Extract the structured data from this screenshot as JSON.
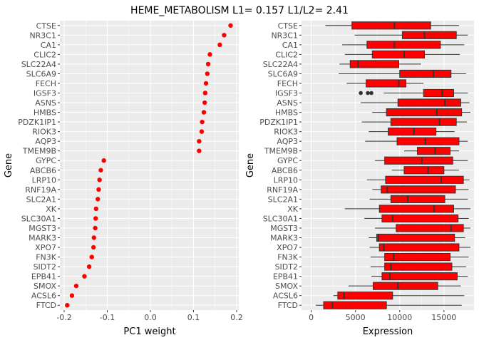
{
  "title": "HEME_METABOLISM L1= 0.157 L1/L2= 2.41",
  "colors": {
    "panel_bg": "#ebebeb",
    "grid": "#ffffff",
    "point": "#ff0000",
    "box_fill": "#ff0000",
    "box_line": "#333333",
    "outlier": "#333333"
  },
  "chart_data": [
    {
      "type": "scatter",
      "xlabel": "PC1 weight",
      "ylabel": "Gene",
      "xlim": [
        -0.21,
        0.205
      ],
      "xticks": [
        -0.2,
        -0.1,
        0.0,
        0.1,
        0.2
      ],
      "xtick_labels": [
        "-0.2",
        "-0.1",
        "0.0",
        "0.1",
        "0.2"
      ],
      "grid": true,
      "genes": [
        "CTSE",
        "NR3C1",
        "CA1",
        "CLIC2",
        "SLC22A4",
        "SLC6A9",
        "FECH",
        "IGSF3",
        "ASNS",
        "HMBS",
        "PDZK1IP1",
        "RIOK3",
        "AQP3",
        "TMEM9B",
        "GYPC",
        "ABCB6",
        "LRP10",
        "RNF19A",
        "SLC2A1",
        "XK",
        "SLC30A1",
        "MGST3",
        "MARK3",
        "XPO7",
        "FN3K",
        "SIDT2",
        "EPB41",
        "SMOX",
        "ACSL6",
        "FTCD"
      ],
      "values": [
        0.186,
        0.171,
        0.161,
        0.138,
        0.134,
        0.132,
        0.129,
        0.127,
        0.126,
        0.124,
        0.12,
        0.119,
        0.113,
        0.113,
        -0.108,
        -0.115,
        -0.118,
        -0.12,
        -0.122,
        -0.126,
        -0.127,
        -0.128,
        -0.131,
        -0.132,
        -0.136,
        -0.142,
        -0.153,
        -0.172,
        -0.182,
        -0.193
      ]
    },
    {
      "type": "boxplot",
      "xlabel": "Expression",
      "ylabel": "Gene",
      "xlim": [
        -1100,
        18400
      ],
      "xticks": [
        0,
        5000,
        10000,
        15000
      ],
      "xtick_labels": [
        "0",
        "5000",
        "10000",
        "15000"
      ],
      "grid": true,
      "genes": [
        "CTSE",
        "NR3C1",
        "CA1",
        "CLIC2",
        "SLC22A4",
        "SLC6A9",
        "FECH",
        "IGSF3",
        "ASNS",
        "HMBS",
        "PDZK1IP1",
        "RIOK3",
        "AQP3",
        "TMEM9B",
        "GYPC",
        "ABCB6",
        "LRP10",
        "RNF19A",
        "SLC2A1",
        "XK",
        "SLC30A1",
        "MGST3",
        "MARK3",
        "XPO7",
        "FN3K",
        "SIDT2",
        "EPB41",
        "SMOX",
        "ACSL6",
        "FTCD"
      ],
      "boxes": [
        {
          "min": 1600,
          "q1": 4600,
          "median": 9400,
          "q3": 13500,
          "max": 16700,
          "outliers": []
        },
        {
          "min": 4900,
          "q1": 10300,
          "median": 12800,
          "q3": 16400,
          "max": 17700,
          "outliers": []
        },
        {
          "min": 3500,
          "q1": 6300,
          "median": 9400,
          "q3": 14600,
          "max": 17300,
          "outliers": []
        },
        {
          "min": 3800,
          "q1": 6900,
          "median": 10500,
          "q3": 12800,
          "max": 16800,
          "outliers": []
        },
        {
          "min": 3200,
          "q1": 4400,
          "median": 5300,
          "q3": 9900,
          "max": 12400,
          "outliers": []
        },
        {
          "min": 3100,
          "q1": 10000,
          "median": 13800,
          "q3": 15800,
          "max": 17500,
          "outliers": []
        },
        {
          "min": 4000,
          "q1": 6200,
          "median": 9900,
          "q3": 10700,
          "max": 12700,
          "outliers": []
        },
        {
          "min": 8200,
          "q1": 12700,
          "median": 14800,
          "q3": 16100,
          "max": 17700,
          "outliers": [
            5600,
            6400,
            6800
          ]
        },
        {
          "min": 5600,
          "q1": 9800,
          "median": 15100,
          "q3": 16900,
          "max": 17900,
          "outliers": []
        },
        {
          "min": 6900,
          "q1": 8500,
          "median": 14200,
          "q3": 17000,
          "max": 18000,
          "outliers": []
        },
        {
          "min": 5700,
          "q1": 9000,
          "median": 14500,
          "q3": 16400,
          "max": 17600,
          "outliers": []
        },
        {
          "min": 6500,
          "q1": 8700,
          "median": 11600,
          "q3": 14100,
          "max": 16200,
          "outliers": []
        },
        {
          "min": 6100,
          "q1": 9700,
          "median": 12900,
          "q3": 16700,
          "max": 17700,
          "outliers": []
        },
        {
          "min": 10500,
          "q1": 12000,
          "median": 14000,
          "q3": 15700,
          "max": 16700,
          "outliers": []
        },
        {
          "min": 7200,
          "q1": 8300,
          "median": 12500,
          "q3": 16000,
          "max": 17700,
          "outliers": []
        },
        {
          "min": 9100,
          "q1": 10500,
          "median": 13200,
          "q3": 15000,
          "max": 16700,
          "outliers": []
        },
        {
          "min": 6300,
          "q1": 8400,
          "median": 14700,
          "q3": 17200,
          "max": 17900,
          "outliers": []
        },
        {
          "min": 6900,
          "q1": 7900,
          "median": 8600,
          "q3": 16300,
          "max": 17800,
          "outliers": []
        },
        {
          "min": 6600,
          "q1": 9000,
          "median": 10900,
          "q3": 15100,
          "max": 17700,
          "outliers": []
        },
        {
          "min": 3800,
          "q1": 7700,
          "median": 13900,
          "q3": 16100,
          "max": 18000,
          "outliers": []
        },
        {
          "min": 6000,
          "q1": 8000,
          "median": 9200,
          "q3": 16600,
          "max": 17800,
          "outliers": []
        },
        {
          "min": 7200,
          "q1": 9600,
          "median": 15800,
          "q3": 17200,
          "max": 18000,
          "outliers": []
        },
        {
          "min": 6500,
          "q1": 7400,
          "median": 7600,
          "q3": 16200,
          "max": 17400,
          "outliers": []
        },
        {
          "min": 6600,
          "q1": 7700,
          "median": 8200,
          "q3": 16700,
          "max": 18000,
          "outliers": []
        },
        {
          "min": 6700,
          "q1": 8300,
          "median": 9300,
          "q3": 15700,
          "max": 17800,
          "outliers": []
        },
        {
          "min": 6700,
          "q1": 8300,
          "median": 9000,
          "q3": 15900,
          "max": 17500,
          "outliers": []
        },
        {
          "min": 6800,
          "q1": 8000,
          "median": 8900,
          "q3": 16500,
          "max": 17700,
          "outliers": []
        },
        {
          "min": 4200,
          "q1": 7000,
          "median": 9800,
          "q3": 14300,
          "max": 16900,
          "outliers": []
        },
        {
          "min": 2500,
          "q1": 3000,
          "median": 3700,
          "q3": 9200,
          "max": 17300,
          "outliers": []
        },
        {
          "min": 500,
          "q1": 1400,
          "median": 2400,
          "q3": 8500,
          "max": 17000,
          "outliers": []
        }
      ]
    }
  ]
}
